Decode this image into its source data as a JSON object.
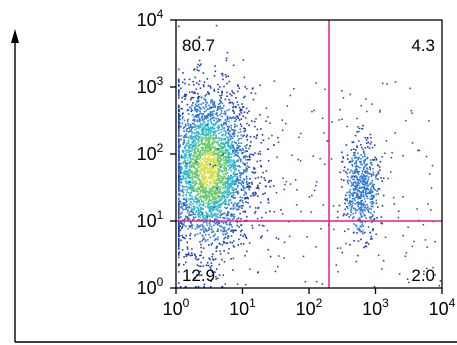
{
  "chart_data": {
    "type": "scatter",
    "title": "",
    "xlabel": "",
    "ylabel": "",
    "x_scale": "log",
    "y_scale": "log",
    "xlim": [
      1,
      10000
    ],
    "ylim": [
      1,
      10000
    ],
    "grid": false,
    "legend": "none",
    "x_ticks": [
      {
        "value": 1,
        "base": "10",
        "exp": "0"
      },
      {
        "value": 10,
        "base": "10",
        "exp": "1"
      },
      {
        "value": 100,
        "base": "10",
        "exp": "2"
      },
      {
        "value": 1000,
        "base": "10",
        "exp": "3"
      },
      {
        "value": 10000,
        "base": "10",
        "exp": "4"
      }
    ],
    "y_ticks": [
      {
        "value": 1,
        "base": "10",
        "exp": "0"
      },
      {
        "value": 10,
        "base": "10",
        "exp": "1"
      },
      {
        "value": 100,
        "base": "10",
        "exp": "2"
      },
      {
        "value": 1000,
        "base": "10",
        "exp": "3"
      },
      {
        "value": 10000,
        "base": "10",
        "exp": "4"
      }
    ],
    "gates": {
      "x": 200,
      "y": 10,
      "color": "#e0208a"
    },
    "quadrants": [
      {
        "name": "upper-left",
        "label": "80.7",
        "value": 80.7
      },
      {
        "name": "upper-right",
        "label": "4.3",
        "value": 4.3
      },
      {
        "name": "lower-left",
        "label": "12.9",
        "value": 12.9
      },
      {
        "name": "lower-right",
        "label": "2.0",
        "value": 2.0
      }
    ],
    "populations": [
      {
        "name": "main",
        "center": [
          3,
          60
        ],
        "spread_x_decades": 0.33,
        "spread_y_decades": 0.6
      },
      {
        "name": "right",
        "center": [
          600,
          30
        ],
        "spread_x_decades": 0.13,
        "spread_y_decades": 0.35
      }
    ],
    "density_colors": [
      "#1f3fb0",
      "#2f78d8",
      "#33b8c8",
      "#6acb6e",
      "#d8e04a"
    ]
  }
}
